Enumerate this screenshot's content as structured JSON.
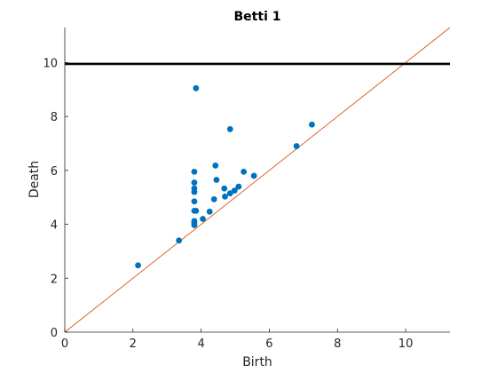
{
  "chart_data": {
    "type": "scatter",
    "title": "Betti 1",
    "xlabel": "Birth",
    "ylabel": "Death",
    "xlim": [
      0,
      11.3
    ],
    "ylim": [
      0,
      11.3
    ],
    "xticks": [
      0,
      2,
      4,
      6,
      8,
      10
    ],
    "yticks": [
      0,
      2,
      4,
      6,
      8,
      10
    ],
    "grid": false,
    "diagonal": {
      "color": "#d95319"
    },
    "infinite_death_line": {
      "y": 9.95,
      "color": "#000000"
    },
    "point_color": "#0072bd",
    "points": [
      {
        "x": 2.15,
        "y": 2.48
      },
      {
        "x": 3.35,
        "y": 3.4
      },
      {
        "x": 3.8,
        "y": 3.97
      },
      {
        "x": 3.8,
        "y": 4.03
      },
      {
        "x": 3.8,
        "y": 4.12
      },
      {
        "x": 3.8,
        "y": 4.5
      },
      {
        "x": 3.8,
        "y": 4.85
      },
      {
        "x": 3.8,
        "y": 5.2
      },
      {
        "x": 3.8,
        "y": 5.33
      },
      {
        "x": 3.8,
        "y": 5.55
      },
      {
        "x": 3.8,
        "y": 5.95
      },
      {
        "x": 3.85,
        "y": 4.5
      },
      {
        "x": 3.85,
        "y": 9.05
      },
      {
        "x": 4.05,
        "y": 4.2
      },
      {
        "x": 4.25,
        "y": 4.47
      },
      {
        "x": 4.38,
        "y": 4.93
      },
      {
        "x": 4.42,
        "y": 6.18
      },
      {
        "x": 4.45,
        "y": 5.65
      },
      {
        "x": 4.68,
        "y": 5.33
      },
      {
        "x": 4.7,
        "y": 5.03
      },
      {
        "x": 4.85,
        "y": 7.53
      },
      {
        "x": 4.85,
        "y": 5.15
      },
      {
        "x": 4.98,
        "y": 5.25
      },
      {
        "x": 5.1,
        "y": 5.4
      },
      {
        "x": 5.25,
        "y": 5.95
      },
      {
        "x": 5.55,
        "y": 5.8
      },
      {
        "x": 6.8,
        "y": 6.9
      },
      {
        "x": 7.25,
        "y": 7.7
      }
    ]
  }
}
